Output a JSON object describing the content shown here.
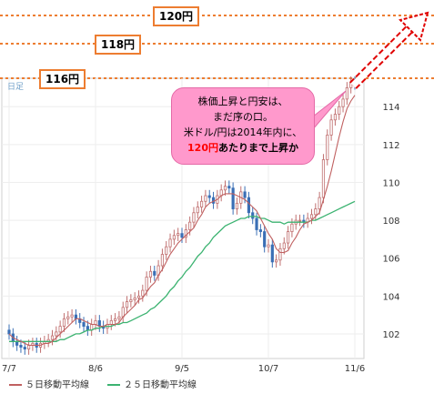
{
  "frame": {
    "label": "日足"
  },
  "targets": [
    {
      "label": "120円",
      "value": 120
    },
    {
      "label": "118円",
      "value": 118
    },
    {
      "label": "116円",
      "value": 116
    }
  ],
  "callout": {
    "line1": "株価上昇と円安は、",
    "line2": "まだ序の口。",
    "line3": "米ドル/円は2014年内に、",
    "line4_red": "120円",
    "line4_rest": "あたりまで上昇か"
  },
  "legend": {
    "ma5": "５日移動平均線",
    "ma25": "２５日移動平均線"
  },
  "colors": {
    "up": "#e0a0a0",
    "down": "#3a6fb5",
    "ma5": "#c06060",
    "ma25": "#3cb371",
    "target_line": "#ed7d31",
    "arrow": "#e00000"
  },
  "chart_data": {
    "type": "candlestick",
    "ylim": [
      100.7,
      115.5
    ],
    "yticks": [
      102,
      104,
      106,
      108,
      110,
      112,
      114
    ],
    "xticks": [
      "7/7",
      "8/6",
      "9/5",
      "10/7",
      "11/6"
    ],
    "xtick_index": [
      0,
      22,
      44,
      66,
      88
    ],
    "target_levels": [
      120,
      118,
      116
    ],
    "close": [
      102.0,
      101.6,
      101.4,
      101.3,
      101.2,
      101.4,
      101.5,
      101.3,
      101.5,
      101.6,
      101.7,
      101.9,
      102.1,
      102.4,
      102.8,
      102.9,
      103.0,
      102.8,
      102.6,
      102.4,
      102.2,
      102.5,
      102.7,
      102.4,
      102.3,
      102.5,
      102.7,
      102.8,
      102.9,
      103.4,
      103.7,
      103.8,
      103.9,
      104.0,
      104.3,
      105.0,
      105.3,
      105.1,
      105.6,
      106.2,
      106.6,
      107.0,
      107.2,
      107.3,
      107.1,
      107.5,
      107.9,
      108.4,
      108.7,
      109.0,
      109.3,
      109.2,
      108.9,
      109.3,
      109.6,
      109.8,
      109.7,
      108.6,
      108.9,
      109.5,
      109.2,
      108.4,
      108.1,
      107.5,
      107.4,
      106.6,
      106.7,
      105.8,
      105.9,
      106.5,
      106.8,
      107.4,
      107.8,
      108.0,
      108.0,
      107.9,
      108.1,
      108.3,
      108.6,
      109.2,
      111.2,
      112.5,
      113.3,
      113.6,
      114.0,
      114.4,
      115.0,
      115.3,
      115.2
    ],
    "ma5": [
      102.0,
      101.8,
      101.7,
      101.6,
      101.5,
      101.4,
      101.4,
      101.4,
      101.4,
      101.5,
      101.5,
      101.6,
      101.8,
      102.0,
      102.2,
      102.4,
      102.6,
      102.8,
      102.8,
      102.7,
      102.6,
      102.5,
      102.5,
      102.4,
      102.4,
      102.5,
      102.5,
      102.5,
      102.6,
      102.9,
      103.1,
      103.3,
      103.5,
      103.8,
      103.9,
      104.2,
      104.5,
      104.7,
      105.1,
      105.4,
      105.8,
      106.2,
      106.5,
      106.8,
      107.0,
      107.2,
      107.4,
      107.6,
      108.0,
      108.3,
      108.7,
      108.9,
      109.0,
      109.1,
      109.3,
      109.4,
      109.4,
      109.4,
      109.3,
      109.2,
      109.1,
      108.9,
      108.7,
      108.5,
      108.1,
      107.7,
      107.3,
      107.0,
      106.5,
      106.3,
      106.3,
      106.4,
      106.8,
      107.1,
      107.5,
      107.8,
      107.9,
      108.0,
      108.2,
      108.4,
      109.1,
      109.8,
      110.6,
      111.5,
      112.4,
      113.2,
      113.9,
      114.3,
      114.6
    ],
    "ma25": [
      101.6,
      101.6,
      101.6,
      101.6,
      101.6,
      101.6,
      101.6,
      101.6,
      101.6,
      101.6,
      101.6,
      101.6,
      101.6,
      101.7,
      101.7,
      101.8,
      101.9,
      102.0,
      102.0,
      102.1,
      102.2,
      102.2,
      102.3,
      102.3,
      102.4,
      102.4,
      102.4,
      102.5,
      102.5,
      102.6,
      102.6,
      102.7,
      102.8,
      102.9,
      103.0,
      103.1,
      103.3,
      103.4,
      103.6,
      103.8,
      104.0,
      104.3,
      104.5,
      104.8,
      105.0,
      105.3,
      105.5,
      105.8,
      106.1,
      106.3,
      106.6,
      106.8,
      107.1,
      107.3,
      107.5,
      107.7,
      107.8,
      107.9,
      108.0,
      108.1,
      108.1,
      108.2,
      108.2,
      108.2,
      108.1,
      108.1,
      108.0,
      107.9,
      107.9,
      107.9,
      107.8,
      107.9,
      107.9,
      107.9,
      107.9,
      107.9,
      107.9,
      108.0,
      108.0,
      108.1,
      108.2,
      108.3,
      108.4,
      108.5,
      108.6,
      108.7,
      108.8,
      108.9,
      109.0
    ]
  }
}
